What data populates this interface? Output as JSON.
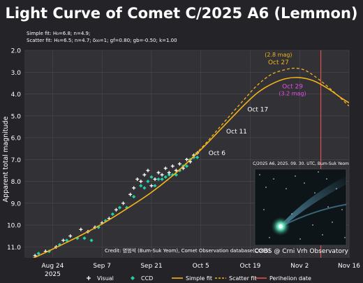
{
  "chart_data": {
    "type": "scatter",
    "title": "Light Curve of Comet C/2025 A6 (Lemmon)",
    "fit_notes": [
      "Simple fit: H₀=6.8; n=4.9;",
      "Scatter fit: H₀=6.5; n=4.7; δ₀₀=1; gf=0.80; gb=-0.50; k=1.00"
    ],
    "ylabel": "Apparent total magnitude",
    "xlabel": "",
    "x_axis": {
      "type": "date",
      "range": [
        "2025-08-16",
        "2025-11-16"
      ],
      "ticks": [
        {
          "date": "2025-08-24",
          "label": "Aug 24",
          "sublabel": "2025"
        },
        {
          "date": "2025-09-07",
          "label": "Sep 7"
        },
        {
          "date": "2025-09-21",
          "label": "Sep 21"
        },
        {
          "date": "2025-10-05",
          "label": "Oct 5"
        },
        {
          "date": "2025-10-19",
          "label": "Oct 19"
        },
        {
          "date": "2025-11-02",
          "label": "Nov 2"
        },
        {
          "date": "2025-11-16",
          "label": "Nov 16"
        }
      ]
    },
    "y_axis": {
      "inverted": true,
      "range": [
        2.0,
        11.5
      ],
      "ticks": [
        "2.0",
        "3.0",
        "4.0",
        "5.0",
        "6.0",
        "7.0",
        "8.0",
        "9.0",
        "10.0",
        "11.0"
      ]
    },
    "grid": true,
    "legend": {
      "position": "bottom",
      "entries": [
        {
          "label": "Visual",
          "marker": "plus",
          "color": "#ffffff"
        },
        {
          "label": "CCD",
          "marker": "diamond",
          "color": "#1fcfa5"
        },
        {
          "label": "Simple fit",
          "marker": "line",
          "color": "#f2b21c"
        },
        {
          "label": "Scatter fit",
          "marker": "dashed",
          "color": "#f2b21c"
        },
        {
          "label": "Perihelion date",
          "marker": "vline",
          "color": "#e0504e"
        }
      ]
    },
    "colors": {
      "visual": "#ffffff",
      "ccd": "#1fcfa5",
      "simple_fit": "#f2b21c",
      "scatter_fit": "#f2b21c",
      "perihelion": "#e0504e",
      "annot_orange": "#f2b21c",
      "annot_magenta": "#e64ee6"
    },
    "series": [
      {
        "name": "Simple fit",
        "style": "solid",
        "points": [
          [
            "2025-08-18",
            11.55
          ],
          [
            "2025-08-24",
            11.1
          ],
          [
            "2025-08-31",
            10.55
          ],
          [
            "2025-09-07",
            9.95
          ],
          [
            "2025-09-14",
            9.25
          ],
          [
            "2025-09-21",
            8.5
          ],
          [
            "2025-09-28",
            7.6
          ],
          [
            "2025-10-05",
            6.55
          ],
          [
            "2025-10-11",
            5.55
          ],
          [
            "2025-10-17",
            4.55
          ],
          [
            "2025-10-21",
            3.95
          ],
          [
            "2025-10-25",
            3.55
          ],
          [
            "2025-10-29",
            3.3
          ],
          [
            "2025-11-02",
            3.25
          ],
          [
            "2025-11-06",
            3.4
          ],
          [
            "2025-11-10",
            3.75
          ],
          [
            "2025-11-14",
            4.2
          ],
          [
            "2025-11-16",
            4.4
          ]
        ]
      },
      {
        "name": "Scatter fit",
        "style": "dashed",
        "points": [
          [
            "2025-08-18",
            11.55
          ],
          [
            "2025-08-24",
            11.1
          ],
          [
            "2025-08-31",
            10.55
          ],
          [
            "2025-09-07",
            9.95
          ],
          [
            "2025-09-14",
            9.25
          ],
          [
            "2025-09-21",
            8.5
          ],
          [
            "2025-09-28",
            7.6
          ],
          [
            "2025-10-05",
            6.5
          ],
          [
            "2025-10-11",
            5.4
          ],
          [
            "2025-10-17",
            4.3
          ],
          [
            "2025-10-21",
            3.6
          ],
          [
            "2025-10-25",
            3.1
          ],
          [
            "2025-10-29",
            2.88
          ],
          [
            "2025-11-01",
            2.82
          ],
          [
            "2025-11-04",
            2.95
          ],
          [
            "2025-11-08",
            3.4
          ],
          [
            "2025-11-12",
            3.95
          ],
          [
            "2025-11-16",
            4.55
          ]
        ]
      }
    ],
    "observations": {
      "visual": [
        [
          "2025-08-19",
          11.4
        ],
        [
          "2025-08-22",
          11.2
        ],
        [
          "2025-08-25",
          11.0
        ],
        [
          "2025-08-27",
          10.7
        ],
        [
          "2025-08-29",
          10.5
        ],
        [
          "2025-09-01",
          10.2
        ],
        [
          "2025-09-03",
          10.3
        ],
        [
          "2025-09-05",
          10.1
        ],
        [
          "2025-09-07",
          9.9
        ],
        [
          "2025-09-09",
          9.7
        ],
        [
          "2025-09-11",
          9.3
        ],
        [
          "2025-09-13",
          9.0
        ],
        [
          "2025-09-15",
          8.6
        ],
        [
          "2025-09-16",
          8.3
        ],
        [
          "2025-09-17",
          7.9
        ],
        [
          "2025-09-18",
          8.0
        ],
        [
          "2025-09-19",
          7.7
        ],
        [
          "2025-09-20",
          7.5
        ],
        [
          "2025-09-21",
          8.2
        ],
        [
          "2025-09-22",
          7.9
        ],
        [
          "2025-09-23",
          7.6
        ],
        [
          "2025-09-24",
          7.7
        ],
        [
          "2025-09-25",
          7.4
        ],
        [
          "2025-09-26",
          7.6
        ],
        [
          "2025-09-27",
          7.3
        ],
        [
          "2025-09-28",
          7.5
        ],
        [
          "2025-09-29",
          7.2
        ],
        [
          "2025-09-30",
          7.4
        ],
        [
          "2025-10-01",
          7.0
        ],
        [
          "2025-10-02",
          7.1
        ],
        [
          "2025-10-03",
          6.8
        ],
        [
          "2025-10-04",
          6.7
        ]
      ],
      "ccd": [
        [
          "2025-08-20",
          11.3
        ],
        [
          "2025-08-23",
          11.2
        ],
        [
          "2025-08-26",
          10.9
        ],
        [
          "2025-08-28",
          10.7
        ],
        [
          "2025-08-31",
          10.6
        ],
        [
          "2025-09-02",
          10.6
        ],
        [
          "2025-09-04",
          10.7
        ],
        [
          "2025-09-06",
          10.1
        ],
        [
          "2025-09-08",
          9.8
        ],
        [
          "2025-09-10",
          9.5
        ],
        [
          "2025-09-12",
          9.2
        ],
        [
          "2025-09-14",
          9.2
        ],
        [
          "2025-09-16",
          8.7
        ],
        [
          "2025-09-18",
          8.2
        ],
        [
          "2025-09-19",
          8.3
        ],
        [
          "2025-09-20",
          8.0
        ],
        [
          "2025-09-21",
          7.8
        ],
        [
          "2025-09-22",
          8.2
        ],
        [
          "2025-09-23",
          7.9
        ],
        [
          "2025-09-24",
          7.9
        ],
        [
          "2025-09-25",
          7.8
        ],
        [
          "2025-09-26",
          7.7
        ],
        [
          "2025-09-27",
          7.7
        ],
        [
          "2025-09-28",
          7.7
        ],
        [
          "2025-09-29",
          7.5
        ],
        [
          "2025-09-30",
          7.3
        ],
        [
          "2025-10-01",
          7.3
        ],
        [
          "2025-10-02",
          7.0
        ],
        [
          "2025-10-03",
          6.9
        ],
        [
          "2025-10-04",
          6.9
        ]
      ]
    },
    "perihelion_date": "2025-11-08",
    "annotations": [
      {
        "date": "2025-10-06",
        "y": 6.55,
        "text": "Oct 6",
        "color": "#ffffff"
      },
      {
        "date": "2025-10-11",
        "y": 5.55,
        "text": "Oct 11",
        "color": "#ffffff"
      },
      {
        "date": "2025-10-17",
        "y": 4.55,
        "text": "Oct 17",
        "color": "#ffffff"
      },
      {
        "date": "2025-10-27",
        "y": 2.9,
        "text": "Oct 27",
        "sub": "(2.8 mag)",
        "color": "#f2b21c"
      },
      {
        "date": "2025-10-29",
        "y": 3.3,
        "text": "Oct 29",
        "sub": "(3.2 mag)",
        "color": "#e64ee6"
      }
    ],
    "inset": {
      "caption": "C/2025 A6, 2025. 09. 30. UTC, Bum-Suk Yeom",
      "image": "comet-photo"
    },
    "credits": {
      "source": "Credit: 염범석 (Bum-Suk Yeom), Comet Observation database(COBS)",
      "observatory": "COBS @ Crni Vrh Observatory"
    }
  }
}
